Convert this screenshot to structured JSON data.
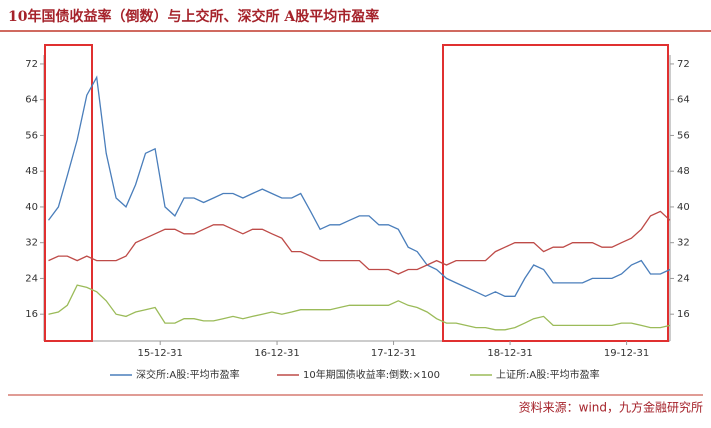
{
  "chart_data": {
    "type": "line",
    "title": "10年国债收益率（倒数）与上交所、深交所 A股平均市盈率",
    "source": "资料来源：wind，九方金融研究所",
    "x": [
      "15-01-15",
      "15-02-15",
      "15-03-15",
      "15-04-15",
      "15-05-15",
      "15-06-15",
      "15-07-15",
      "15-08-15",
      "15-09-15",
      "15-10-15",
      "15-11-15",
      "15-12-15",
      "16-01-15",
      "16-02-15",
      "16-03-15",
      "16-04-15",
      "16-05-15",
      "16-06-15",
      "16-07-15",
      "16-08-15",
      "16-09-15",
      "16-10-15",
      "16-11-15",
      "16-12-15",
      "17-01-15",
      "17-02-15",
      "17-03-15",
      "17-04-15",
      "17-05-15",
      "17-06-15",
      "17-07-15",
      "17-08-15",
      "17-09-15",
      "17-10-15",
      "17-11-15",
      "17-12-15",
      "18-01-15",
      "18-02-15",
      "18-03-15",
      "18-04-15",
      "18-05-15",
      "18-06-15",
      "18-07-15",
      "18-08-15",
      "18-09-15",
      "18-10-15",
      "18-11-15",
      "18-12-15",
      "19-01-15",
      "19-02-15",
      "19-03-15",
      "19-04-15",
      "19-05-15",
      "19-06-15",
      "19-07-15",
      "19-08-15",
      "19-09-15",
      "19-10-15",
      "19-11-15",
      "19-12-15",
      "20-01-15",
      "20-02-15",
      "20-03-15",
      "20-04-15",
      "20-05-15"
    ],
    "series": [
      {
        "name": "深交所:A股:平均市盈率",
        "color": "#4a7ebb",
        "values": [
          37,
          40,
          47,
          55,
          65,
          69,
          52,
          42,
          40,
          45,
          52,
          53,
          40,
          38,
          42,
          42,
          41,
          42,
          43,
          43,
          42,
          43,
          44,
          43,
          42,
          42,
          43,
          39,
          35,
          36,
          36,
          37,
          38,
          38,
          36,
          36,
          35,
          31,
          30,
          27,
          26,
          24,
          23,
          22,
          21,
          20,
          21,
          20,
          20,
          24,
          27,
          26,
          23,
          23,
          23,
          23,
          24,
          24,
          24,
          25,
          27,
          28,
          25,
          25,
          26
        ]
      },
      {
        "name": "10年期国债收益率:倒数:×100",
        "color": "#be4b48",
        "values": [
          28,
          29,
          29,
          28,
          29,
          28,
          28,
          28,
          29,
          32,
          33,
          34,
          35,
          35,
          34,
          34,
          35,
          36,
          36,
          35,
          34,
          35,
          35,
          34,
          33,
          30,
          30,
          29,
          28,
          28,
          28,
          28,
          28,
          26,
          26,
          26,
          25,
          26,
          26,
          27,
          28,
          27,
          28,
          28,
          28,
          28,
          30,
          31,
          32,
          32,
          32,
          30,
          31,
          31,
          32,
          32,
          32,
          31,
          31,
          32,
          33,
          35,
          38,
          39,
          37
        ]
      },
      {
        "name": "上证所:A股:平均市盈率",
        "color": "#9bbb59",
        "values": [
          16,
          16.5,
          18,
          22.5,
          22,
          21,
          19,
          16,
          15.5,
          16.5,
          17,
          17.5,
          14,
          14,
          15,
          15,
          14.5,
          14.5,
          15,
          15.5,
          15,
          15.5,
          16,
          16.5,
          16,
          16.5,
          17,
          17,
          17,
          17,
          17.5,
          18,
          18,
          18,
          18,
          18,
          19,
          18,
          17.5,
          16.5,
          15,
          14,
          14,
          13.5,
          13,
          13,
          12.5,
          12.5,
          13,
          14,
          15,
          15.5,
          13.5,
          13.5,
          13.5,
          13.5,
          13.5,
          13.5,
          13.5,
          14,
          14,
          13.5,
          13,
          13,
          13.5
        ]
      }
    ],
    "xlim": [
      "15-01-01",
      "20-05-15"
    ],
    "xticks": [
      "15-12-31",
      "16-12-31",
      "17-12-31",
      "18-12-31",
      "19-12-31"
    ],
    "ylim": [
      10,
      74
    ],
    "yticks": [
      16,
      24,
      32,
      40,
      48,
      56,
      64,
      72
    ],
    "y2lim": [
      10,
      74
    ],
    "y2ticks": [
      16,
      24,
      32,
      40,
      48,
      56,
      64,
      72
    ],
    "grid": false
  }
}
